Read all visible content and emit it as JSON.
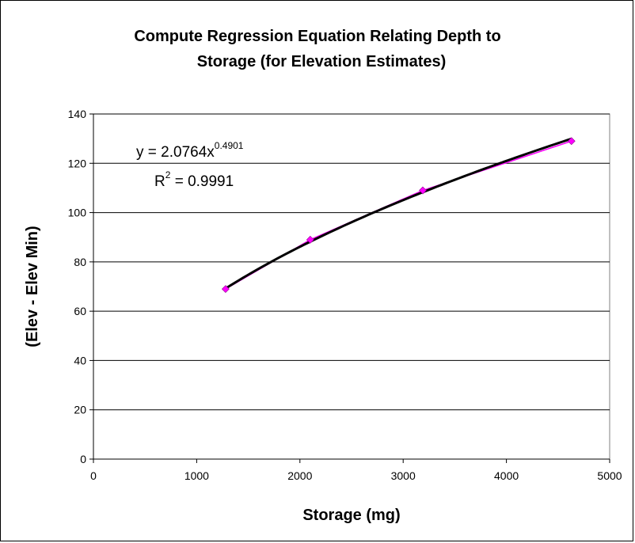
{
  "chart_data": {
    "type": "scatter",
    "title_line1": "Compute Regression Equation Relating Depth to",
    "title_line2": "Storage (for Elevation Estimates)",
    "xlabel": "Storage (mg)",
    "ylabel": "(Elev - Elev Min)",
    "xlim": [
      0,
      5000
    ],
    "ylim": [
      0,
      140
    ],
    "x_ticks": [
      0,
      1000,
      2000,
      3000,
      4000,
      5000
    ],
    "y_ticks": [
      0,
      20,
      40,
      60,
      80,
      100,
      120,
      140
    ],
    "grid": "horizontal major gridlines",
    "series": [
      {
        "color": "#ff00ff",
        "marker": "diamond",
        "x": [
          1280,
          2100,
          3190,
          4630
        ],
        "y": [
          69,
          89,
          109,
          129
        ]
      }
    ],
    "trendline": {
      "kind": "power",
      "coefficient": 2.0764,
      "exponent": 0.4901,
      "color": "#000000",
      "equation_main": "y = 2.0764x",
      "equation_exp": "0.4901",
      "r2_prefix": "R",
      "r2_sup": "2",
      "r2_value": " = 0.9991"
    }
  }
}
